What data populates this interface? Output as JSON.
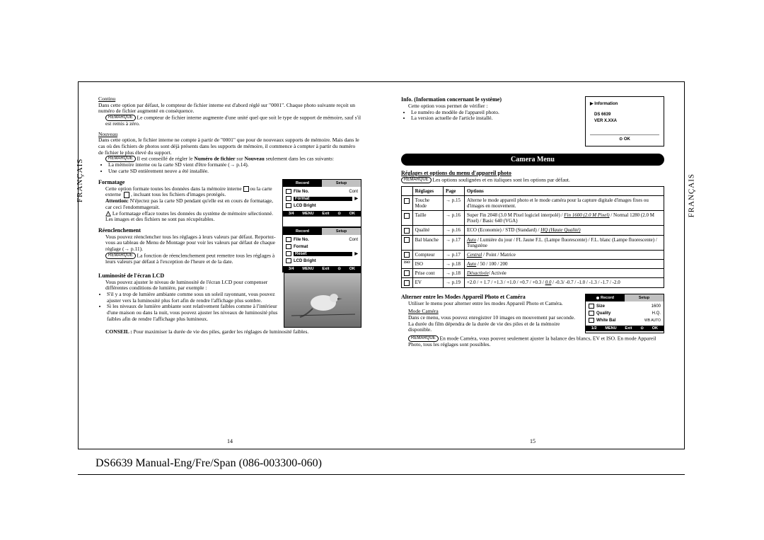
{
  "doc": {
    "footer_title": "DS6639 Manual-Eng/Fre/Span (086-003300-060)",
    "side_label": "FRANÇAIS"
  },
  "left": {
    "page_num": "14",
    "continu": {
      "title": "Continu",
      "body": "Dans cette option par défaut, le compteur de fichier interne est d'abord réglé sur \"0001\". Chaque photo suivante reçoit un numéro de fichier augmenté en conséquence.",
      "remark_badge": "REMARQUE",
      "remark": "Le compteur de fichier interne augmente d'une unité quel que soit le type de support de mémoire, sauf s'il est remis à zéro."
    },
    "nouveau": {
      "title": "Nouveau",
      "body": "Dans cette option, le fichier interne ne compte à partir de \"0001\" que pour de nouveaux supports de mémoire. Mais dans le cas où des fichiers de photos sont déjà présents dans les supports de mémoire, il commence à compter à partir du numéro de fichier le plus élevé du support.",
      "remark_badge": "REMARQUE",
      "remark_prefix": "Il est conseillé de régler le ",
      "remark_bold1": "Numéro de fichier",
      "remark_mid": " sur ",
      "remark_bold2": "Nouveau",
      "remark_suffix": " seulement dans les cas suivants:",
      "bullets": [
        "La mémoire interne ou la carte SD vient d'être formatée (→ p.14).",
        "Une carte SD entièrement neuve a été installée."
      ]
    },
    "formatage": {
      "title": "Formatage",
      "body1": "Cette option formate toutes les données dans la mémoire interne ",
      "body2": " ou la carte externe ",
      "body3": ", incluant tous les fichiers d'images protégés.",
      "attention_label": "Attention:",
      "attention": " N'éjectez pas la carte SD pendant qu'elle est en cours de formatage, car ceci l'endommagerait.",
      "warn_body": "Le formatage efface toutes les données du système de mémoire sélectionné. Les images et des fichiers ne sont pas récupérables."
    },
    "reencl": {
      "title": "Réenclenchement",
      "body": "Vous pouvez réenclencher tous les réglages à leurs valeurs par défaut. Reportez-vous au tableau de Menu de Montage pour voir les valeurs par défaut de chaque réglage (→ p.11).",
      "remark_badge": "REMARQUE",
      "remark": "La fonction de réenclenchement peut remettre tous les réglages à leurs valeurs par défaut à l'exception de l'heure et de la date."
    },
    "lcd": {
      "title": "Luminosité de l'écran LCD",
      "body": "Vous pouvez ajuster le niveau de luminosité de l'écran LCD pour compenser différentes conditions de lumière, par exemple :",
      "bullets": [
        "S'il y a trop de lumière ambiante comme sous un soleil rayonnant, vous pouvez ajuster vers la luminosité plus fort afin de rendre l'affichage plus sombre.",
        "Si les niveaux de lumière ambiante sont relativement faibles comme à l'intérieur d'une maison ou dans la nuit, vous pouvez ajuster les niveaux de luminosité plus faibles afin de rendre l'affichage plus lumineux."
      ],
      "conseil_label": "CONSEIL :",
      "conseil": " Pour maximiser la durée de vie des piles, garder les réglages de luminosité faibles."
    },
    "lcd1": {
      "tab_active": "Record",
      "tab_inactive": "Setup",
      "rows": [
        {
          "label": "File No.",
          "val": "Cont",
          "sel": false
        },
        {
          "label": "Format",
          "val": "",
          "sel": true
        },
        {
          "label": "LCD Bright",
          "val": "",
          "sel": false
        }
      ],
      "foot": [
        "3/4",
        "MENU",
        "Exit",
        "⊙",
        "OK"
      ]
    },
    "lcd2": {
      "tab_active": "Record",
      "tab_inactive": "Setup",
      "rows": [
        {
          "label": "File No.",
          "val": "Cont",
          "sel": false
        },
        {
          "label": "Format",
          "val": "",
          "sel": false
        },
        {
          "label": "Reset",
          "val": "",
          "sel": true
        },
        {
          "label": "LCD Bright",
          "val": "",
          "sel": false
        }
      ],
      "foot": [
        "3/4",
        "MENU",
        "Exit",
        "⊙",
        "OK"
      ]
    }
  },
  "right": {
    "page_num": "15",
    "info": {
      "title": "Info. (Information concernant le système)",
      "body": "Cette option vous permet de vérifier :",
      "bullets": [
        "Le numéro de modèle de l'appareil photo.",
        "La version actuelle de l'article installé."
      ],
      "box": {
        "head": "▶ Information",
        "model": "DS 6639",
        "version": "VER X.XXA",
        "foot": "⊙ OK"
      }
    },
    "cam_menu": "Camera Menu",
    "settings_title": "Réglages et options du menu d'appareil photo",
    "remark_badge": "REMARQUE",
    "remark": "Les options soulignées et en italiques sont les options par défaut.",
    "table": {
      "headers": [
        "",
        "Réglages",
        "Page",
        "Options"
      ],
      "rows": [
        {
          "icon": "◻",
          "label": "Touche Mode",
          "page": "→ p.15",
          "opt": "Alterne le mode appareil photo et le mode caméra pour la capture digitale d'images fixes ou d'images en mouvement."
        },
        {
          "icon": "◻",
          "label": "Taille",
          "page": "→ p.16",
          "opt": "Super Fin 2048 (3.0 M Pixel logiciel interpolé) / <i><u>Fin 1600 (2.0 M Pixel)</u></i> / Normal 1280 (2.0 M Pixel) / Basic 640 (VGA)"
        },
        {
          "icon": "◻",
          "label": "Qualité",
          "page": "→ p.16",
          "opt": "ECO (Economie) / STD (Standard) / <i><u>HQ (Haute Qualité)</u></i>"
        },
        {
          "icon": "◻",
          "label": "Bal blanche",
          "page": "→ p.17",
          "opt": "<i><u>Auto</u></i> / Lumière du jour / FL Jaune F.L. (Lampe fluorescente) / F.L. blanc (Lampe fluorescente) / Tungstène"
        },
        {
          "icon": "◻",
          "label": "Compteur",
          "page": "→ p.17",
          "opt": "<i><u>Central</u></i> / Point / Matrice"
        },
        {
          "icon": "ISO",
          "label": "ISO",
          "page": "→ p.18",
          "opt": "<i><u>Auto</u></i> / 50 / 100 / 200"
        },
        {
          "icon": "◻",
          "label": "Prise cont",
          "page": "→ p.18",
          "opt": "<i><u>Désactivée</u></i>/ Activée"
        },
        {
          "icon": "◻",
          "label": "EV",
          "page": "→ p.19",
          "opt": "+2.0 / + 1.7 / +1.3 / +1.0 / +0.7 / +0.3 / <i><u>0.0</u></i> / -0.3/ -0.7 / -1.0 / -1.3 / -1.7 / -2.0"
        }
      ]
    },
    "alt": {
      "title": "Alterner entre les Modes Appareil Photo et Caméra",
      "body": "Utiliser le menu pour alterner entre les modes Appareil Photo et Caméra.",
      "sub_title": "Mode Caméra",
      "sub_body": "Dans ce menu, vous pouvez enregistrer 10 images en mouvement par seconde. La durée du film dépendra de la durée de vie des piles et de la mémoire disponible.",
      "remark_badge": "REMARQUE",
      "remark": "En mode Caméra, vous pouvez seulement ajuster la balance des blancs, EV et ISO. En mode Appareil Photo, tous les réglages sont possibles."
    },
    "lcd3": {
      "tab_active": "Record",
      "tab_inactive": "Setup",
      "rows": [
        {
          "label": "Size",
          "val": "1600",
          "sel": false
        },
        {
          "label": "Quality",
          "val": "H.Q.",
          "sel": false
        },
        {
          "label": "White Bal",
          "val": "WB AUTO",
          "sel": false
        }
      ],
      "foot": [
        "1/2",
        "MENU",
        "Exit",
        "⊙",
        "OK"
      ]
    }
  }
}
